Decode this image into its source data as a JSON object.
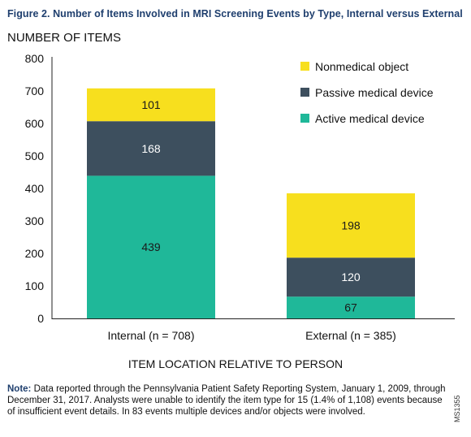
{
  "figure_title": "Figure 2. Number of Items Involved in MRI Screening Events by Type, Internal versus External",
  "note_label": "Note:",
  "note_text": " Data reported through the Pennsylvania Patient Safety Reporting System, January 1, 2009, through December 31, 2017. Analysts were unable to identify the item type for 15 (1.4% of 1,108) events because of insufficient event details. In 83 events multiple devices and/or objects were involved.",
  "figure_code": "MS1355",
  "chart_data": {
    "type": "bar",
    "stacked": true,
    "title": "",
    "ylabel": "NUMBER OF ITEMS",
    "xlabel": "ITEM LOCATION RELATIVE TO PERSON",
    "ylim": [
      0,
      800
    ],
    "yticks": [
      0,
      100,
      200,
      300,
      400,
      500,
      600,
      700,
      800
    ],
    "categories": [
      "Internal (n = 708)",
      "External (n = 385)"
    ],
    "series": [
      {
        "name": "Active medical device",
        "color": "#1fb899",
        "label_color": "#1a1a1a",
        "values": [
          439,
          67
        ]
      },
      {
        "name": "Passive medical device",
        "color": "#3d4f5e",
        "label_color": "#ffffff",
        "values": [
          168,
          120
        ]
      },
      {
        "name": "Nonmedical object",
        "color": "#f7df1e",
        "label_color": "#1a1a1a",
        "values": [
          101,
          198
        ]
      }
    ],
    "legend_position": "top-right",
    "legend_order": [
      2,
      1,
      0
    ],
    "grid": false
  }
}
